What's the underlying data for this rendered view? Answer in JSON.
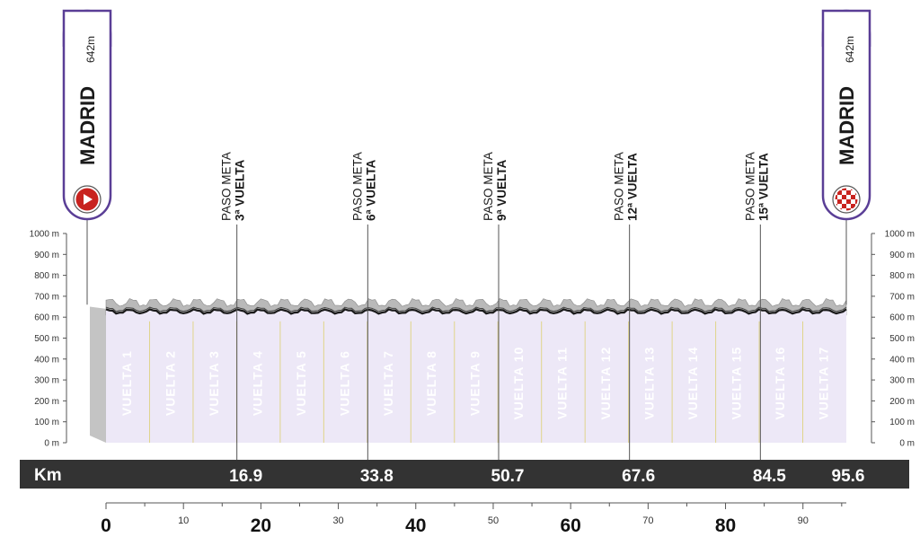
{
  "chart_data": {
    "type": "area",
    "title": "",
    "xlabel": "Km",
    "ylabel": "",
    "xlim": [
      0,
      95.6
    ],
    "ylim": [
      0,
      1000
    ],
    "y_ticks": [
      "0 m",
      "100 m",
      "200 m",
      "300 m",
      "400 m",
      "500 m",
      "600 m",
      "700 m",
      "800 m",
      "900 m",
      "1000 m"
    ],
    "y_tick_values": [
      0,
      100,
      200,
      300,
      400,
      500,
      600,
      700,
      800,
      900,
      1000
    ],
    "x_axis_major": [
      0,
      20,
      40,
      60,
      80
    ],
    "x_axis_minor": [
      10,
      30,
      50,
      70,
      90
    ],
    "baseline_elevation_m": 642,
    "elevation_band_m": [
      610,
      690
    ],
    "start": {
      "name": "MADRID",
      "elevation": "642m",
      "km": 0,
      "icon": "start-arrow-icon"
    },
    "finish": {
      "name": "MADRID",
      "elevation": "642m",
      "km": 95.6,
      "icon": "checkered-flag-icon"
    },
    "passes": [
      {
        "line1": "PASO META",
        "line2": "3ª VUELTA",
        "km": 16.9
      },
      {
        "line1": "PASO META",
        "line2": "6ª VUELTA",
        "km": 33.8
      },
      {
        "line1": "PASO META",
        "line2": "9ª VUELTA",
        "km": 50.7
      },
      {
        "line1": "PASO META",
        "line2": "12ª VUELTA",
        "km": 67.6
      },
      {
        "line1": "PASO META",
        "line2": "15ª VUELTA",
        "km": 84.5
      }
    ],
    "km_labels": [
      "16.9",
      "33.8",
      "50.7",
      "67.6",
      "84.5",
      "95.6"
    ],
    "km_label_values": [
      16.9,
      33.8,
      50.7,
      67.6,
      84.5,
      95.6
    ],
    "laps": [
      "VUELTA 1",
      "VUELTA 2",
      "VUELTA 3",
      "VUELTA 4",
      "VUELTA 5",
      "VUELTA 6",
      "VUELTA 7",
      "VUELTA 8",
      "VUELTA 9",
      "VUELTA 10",
      "VUELTA 11",
      "VUELTA 12",
      "VUELTA 13",
      "VUELTA 14",
      "VUELTA 15",
      "VUELTA 16",
      "VUELTA 17"
    ],
    "colors": {
      "accent": "#5a3e96",
      "start_marker": "#c8231f",
      "profile_fill": "#ede8f7",
      "km_bar": "#333333",
      "lap_divider": "#e0d48a",
      "terrain": "#b9b9b9"
    }
  }
}
